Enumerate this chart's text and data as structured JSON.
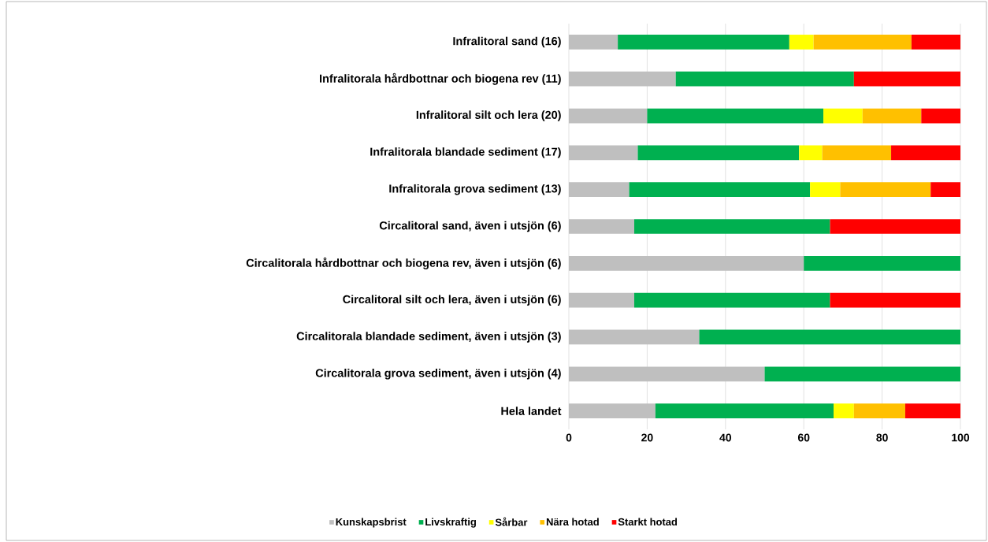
{
  "chart_data": {
    "type": "bar",
    "orientation": "horizontal",
    "stacked": true,
    "categories": [
      "Infralitoral sand (16)",
      "Infralitorala hårdbottnar och biogena rev (11)",
      "Infralitoral silt och lera (20)",
      "Infralitorala blandade sediment (17)",
      "Infralitorala grova sediment (13)",
      "Circalitoral sand, även i utsjön (6)",
      "Circalitorala hårdbottnar och biogena rev, även i utsjön (6)",
      "Circalitoral silt och lera, även i utsjön (6)",
      "Circalitorala blandade sediment, även i utsjön (3)",
      "Circalitorala grova sediment, även i utsjön (4)",
      "Hela landet"
    ],
    "series": [
      {
        "name": "Kunskapsbrist",
        "color": "#bfbfbf",
        "values": [
          12.5,
          27.3,
          20,
          17.6,
          15.4,
          16.7,
          60,
          16.7,
          33.3,
          50,
          22.1
        ]
      },
      {
        "name": "Livskraftig",
        "color": "#00b050",
        "values": [
          43.8,
          45.5,
          45,
          41.2,
          46.2,
          50,
          40,
          50,
          66.7,
          50,
          45.5
        ]
      },
      {
        "name": "Sårbar",
        "color": "#ffff00",
        "values": [
          6.2,
          null,
          10,
          5.9,
          7.7,
          null,
          null,
          null,
          null,
          null,
          5.2
        ]
      },
      {
        "name": "Nära hotad",
        "color": "#ffc000",
        "values": [
          25,
          null,
          15,
          17.6,
          23.1,
          null,
          null,
          null,
          null,
          null,
          13.1
        ]
      },
      {
        "name": "Starkt hotad",
        "color": "#ff0000",
        "values": [
          12.5,
          27.2,
          10,
          17.7,
          7.6,
          33.3,
          null,
          33.3,
          null,
          null,
          14.1
        ]
      }
    ],
    "xlim": [
      0,
      100
    ],
    "xticks": [
      0,
      20,
      40,
      60,
      80,
      100
    ],
    "grid": "x",
    "legend": "bottom"
  }
}
